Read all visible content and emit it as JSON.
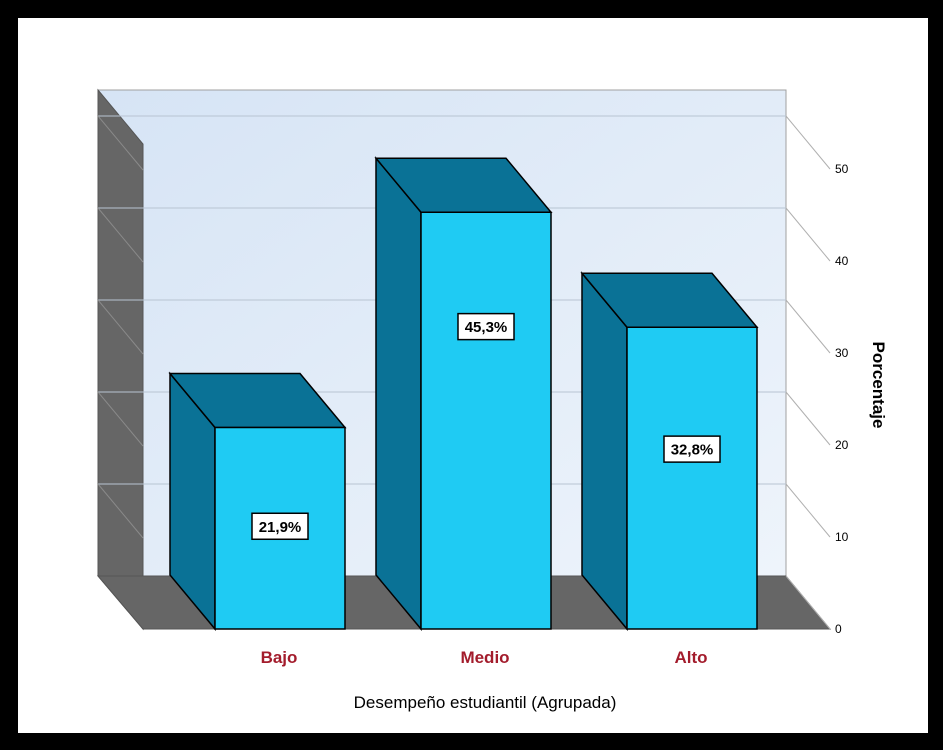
{
  "chart_data": {
    "type": "bar",
    "style": "3d",
    "categories": [
      "Bajo",
      "Medio",
      "Alto"
    ],
    "values": [
      21.9,
      45.3,
      32.8
    ],
    "data_labels": [
      "21,9%",
      "45,3%",
      "32,8%"
    ],
    "xlabel": "Desempeño estudiantil (Agrupada)",
    "ylabel": "Porcentaje",
    "yticks": [
      "0",
      "10",
      "20",
      "30",
      "40",
      "50"
    ],
    "ylim": [
      0,
      50
    ],
    "y_axis_side": "right",
    "grid": true,
    "legend": "none",
    "colors": {
      "bar_front": "#1fcbf3",
      "bar_side": "#0a7296",
      "bar_top": "#0a7296",
      "back_wall": "#dde8f6",
      "side_wall": "#666666",
      "floor": "#666666",
      "category_label": "#a31c2c"
    }
  }
}
